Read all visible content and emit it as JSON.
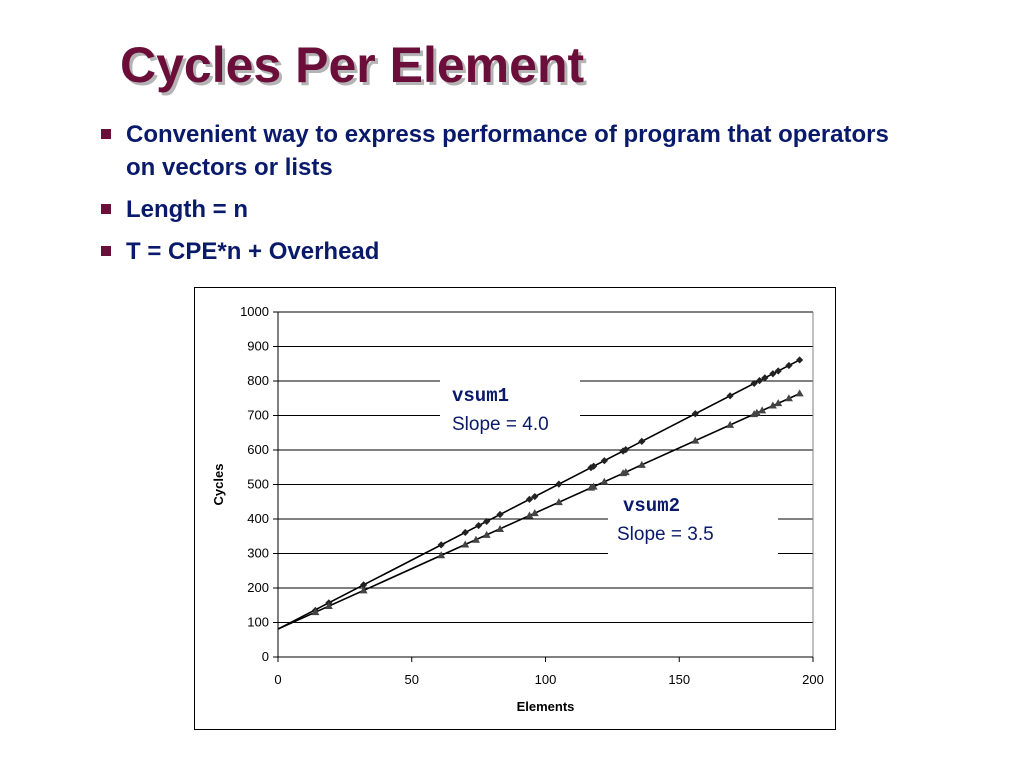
{
  "slide": {
    "title": "Cycles Per Element",
    "bullets": [
      "Convenient way to express performance of program that operators on vectors or lists",
      "Length = n",
      "T = CPE*n + Overhead"
    ],
    "accent_color": "#6b0f3a",
    "text_color": "#0a1a6a"
  },
  "chart_data": {
    "type": "scatter",
    "xlabel": "Elements",
    "ylabel": "Cycles",
    "xlim": [
      0,
      200
    ],
    "ylim": [
      0,
      1000
    ],
    "x_ticks": [
      "0",
      "50",
      "100",
      "150",
      "200"
    ],
    "y_ticks": [
      "0",
      "100",
      "200",
      "300",
      "400",
      "500",
      "600",
      "700",
      "800",
      "900",
      "1000"
    ],
    "grid": "horizontal",
    "series": [
      {
        "name": "vsum1",
        "marker": "diamond",
        "x": [
          14,
          19,
          32,
          61,
          70,
          75,
          78,
          83,
          94,
          96,
          105,
          117,
          118,
          122,
          129,
          130,
          136,
          156,
          169,
          178,
          180,
          182,
          185,
          187,
          191,
          195
        ],
        "y": [
          135,
          157,
          209,
          325,
          361,
          381,
          393,
          413,
          457,
          465,
          501,
          549,
          553,
          569,
          597,
          601,
          625,
          705,
          757,
          793,
          801,
          809,
          821,
          829,
          845,
          861
        ],
        "fit": {
          "slope": 4.0,
          "intercept": 81
        },
        "annotation": {
          "code": "vsum1",
          "text": "Slope = 4.0"
        }
      },
      {
        "name": "vsum2",
        "marker": "triangle",
        "x": [
          14,
          19,
          32,
          61,
          70,
          74,
          78,
          83,
          94,
          96,
          105,
          117,
          118,
          122,
          129,
          130,
          136,
          156,
          169,
          178,
          179,
          181,
          185,
          187,
          191,
          195
        ],
        "y": [
          130,
          148,
          193,
          295,
          326,
          340,
          354,
          371,
          410,
          417,
          449,
          491,
          494,
          508,
          533,
          536,
          557,
          627,
          673,
          704,
          708,
          715,
          729,
          736,
          750,
          764
        ],
        "fit": {
          "slope": 3.5,
          "intercept": 81
        },
        "annotation": {
          "code": "vsum2",
          "text": "Slope = 3.5"
        }
      }
    ]
  }
}
